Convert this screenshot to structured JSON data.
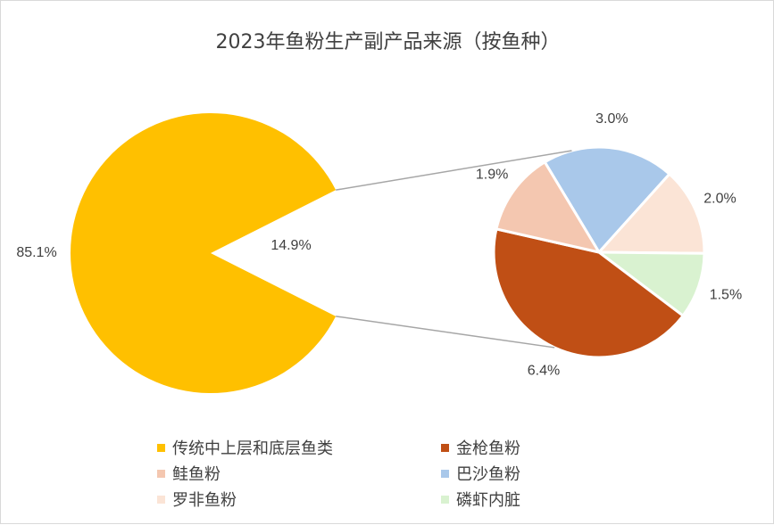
{
  "chart_data": {
    "type": "pie",
    "subtype": "pie-of-pie",
    "title": "2023年鱼粉生产副产品来源（按鱼种）",
    "main_pie": {
      "slices": [
        {
          "name": "传统中上层和底层鱼类",
          "value": 85.1,
          "label": "85.1%",
          "color": "#FFC000"
        },
        {
          "name": "",
          "value": 14.9,
          "label": "14.9%",
          "color": "#FFFFFF"
        }
      ]
    },
    "secondary_pie": {
      "slices": [
        {
          "name": "巴沙鱼粉",
          "value": 3.0,
          "label": "3.0%",
          "color": "#A9C8EA"
        },
        {
          "name": "罗非鱼粉",
          "value": 2.0,
          "label": "2.0%",
          "color": "#FBE4D6"
        },
        {
          "name": "磷虾内脏",
          "value": 1.5,
          "label": "1.5%",
          "color": "#D9F2D0"
        },
        {
          "name": "金枪鱼粉",
          "value": 6.4,
          "label": "6.4%",
          "color": "#C04F15"
        },
        {
          "name": "鲑鱼粉",
          "value": 1.9,
          "label": "1.9%",
          "color": "#F4C7B0"
        }
      ]
    },
    "legend": {
      "placement": "bottom",
      "items": [
        {
          "name": "传统中上层和底层鱼类",
          "color": "#FFC000"
        },
        {
          "name": "金枪鱼粉",
          "color": "#C04F15"
        },
        {
          "name": "鲑鱼粉",
          "color": "#F4C7B0"
        },
        {
          "name": "巴沙鱼粉",
          "color": "#A9C8EA"
        },
        {
          "name": "罗非鱼粉",
          "color": "#FBE4D6"
        },
        {
          "name": "磷虾内脏",
          "color": "#D9F2D0"
        }
      ]
    }
  }
}
